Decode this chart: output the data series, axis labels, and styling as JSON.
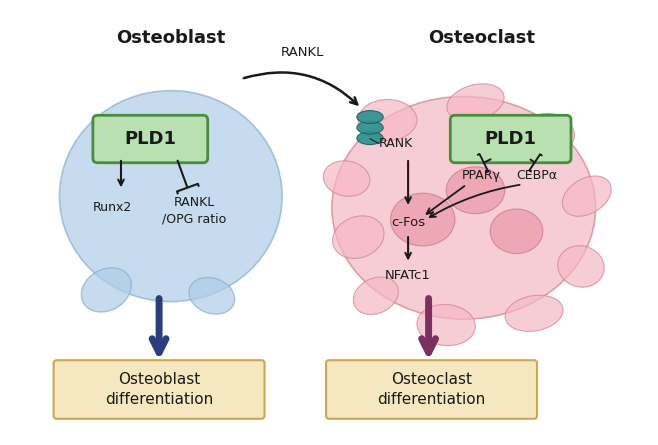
{
  "title": "",
  "bg_color": "#ffffff",
  "osteoblast_cell_color": "#aecde8",
  "osteoclast_cell_color": "#f5b8c4",
  "pld1_box_color": "#b8e0b0",
  "pld1_border_color": "#4a8c3f",
  "osteoblast_label": "Osteoblast",
  "osteoclast_label": "Osteoclast",
  "pld1_text": "PLD1",
  "rankl_arrow_text": "RANKL",
  "rank_text": "RANK",
  "runx2_text": "Runx2",
  "rankl_opg_text": "RANKL\n/OPG ratio",
  "cfos_text": "c-Fos",
  "nfatc1_text": "NFATc1",
  "ppary_text": "PPARγ",
  "cebpa_text": "CEBPα",
  "ob_diff_text": "Osteoblast\ndifferentiation",
  "oc_diff_text": "Osteoclast\ndifferentiation",
  "navy_arrow_color": "#2c3e7a",
  "purple_arrow_color": "#7b3060",
  "black_arrow_color": "#1a1a1a",
  "teal_receptor_color": "#2a9090",
  "diff_box_color": "#f5e8c0",
  "diff_box_border": "#c8a850",
  "nucleus_color": "#e890a0"
}
